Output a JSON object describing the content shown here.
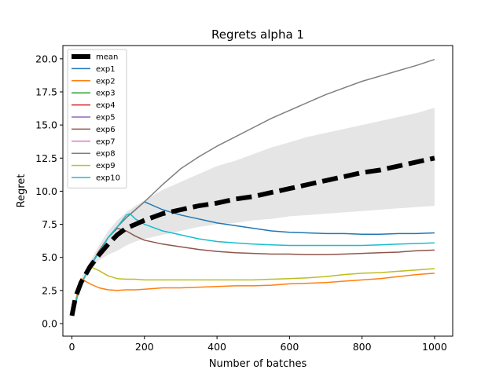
{
  "chart_data": {
    "type": "line",
    "title": "Regrets alpha 1",
    "xlabel": "Number of batches",
    "ylabel": "Regret",
    "xlim": [
      -25,
      1050
    ],
    "ylim": [
      -0.95,
      21.0
    ],
    "xticks": [
      0,
      200,
      400,
      600,
      800,
      1000
    ],
    "xtick_labels": [
      "0",
      "200",
      "400",
      "600",
      "800",
      "1000"
    ],
    "yticks": [
      0.0,
      2.5,
      5.0,
      7.5,
      10.0,
      12.5,
      15.0,
      17.5,
      20.0
    ],
    "ytick_labels": [
      "0.0",
      "2.5",
      "5.0",
      "7.5",
      "10.0",
      "12.5",
      "15.0",
      "17.5",
      "20.0"
    ],
    "grid": false,
    "legend_position": "top-left",
    "mean": {
      "name": "mean",
      "color": "#000000",
      "style": "dashed",
      "x": [
        0,
        10,
        25,
        50,
        75,
        100,
        125,
        150,
        175,
        200,
        250,
        300,
        350,
        400,
        450,
        500,
        550,
        600,
        650,
        700,
        750,
        800,
        850,
        900,
        950,
        1000
      ],
      "y": [
        0.6,
        2.0,
        3.1,
        4.3,
        5.2,
        6.0,
        6.7,
        7.2,
        7.5,
        7.8,
        8.3,
        8.6,
        8.9,
        9.1,
        9.4,
        9.6,
        9.9,
        10.2,
        10.5,
        10.8,
        11.1,
        11.4,
        11.6,
        11.9,
        12.2,
        12.5
      ]
    },
    "band": {
      "color": "#d3d3d3",
      "x": [
        0,
        25,
        50,
        75,
        100,
        125,
        150,
        175,
        200,
        250,
        300,
        350,
        400,
        450,
        500,
        550,
        600,
        650,
        700,
        750,
        800,
        850,
        900,
        950,
        1000
      ],
      "upper": [
        0.8,
        3.4,
        4.7,
        5.9,
        7.0,
        7.8,
        8.4,
        8.9,
        9.3,
        10.1,
        10.7,
        11.3,
        11.9,
        12.3,
        12.8,
        13.3,
        13.7,
        14.1,
        14.4,
        14.7,
        15.0,
        15.3,
        15.6,
        15.9,
        16.3
      ],
      "lower": [
        0.5,
        2.8,
        4.0,
        4.8,
        5.2,
        5.5,
        5.9,
        6.2,
        6.4,
        6.7,
        7.0,
        7.3,
        7.5,
        7.6,
        7.8,
        7.9,
        8.1,
        8.2,
        8.3,
        8.4,
        8.5,
        8.6,
        8.7,
        8.8,
        8.9
      ]
    },
    "series": [
      {
        "name": "exp1",
        "color": "#1f77b4",
        "x": [
          0,
          25,
          50,
          75,
          100,
          125,
          150,
          175,
          200,
          250,
          300,
          350,
          400,
          450,
          500,
          550,
          600,
          650,
          700,
          750,
          800,
          850,
          900,
          950,
          1000
        ],
        "y": [
          0.6,
          3.0,
          4.3,
          5.4,
          6.5,
          7.3,
          8.0,
          8.6,
          9.2,
          8.6,
          8.2,
          7.9,
          7.6,
          7.4,
          7.2,
          7.0,
          6.9,
          6.85,
          6.8,
          6.8,
          6.75,
          6.75,
          6.8,
          6.8,
          6.85
        ]
      },
      {
        "name": "exp2",
        "color": "#ff7f0e",
        "x": [
          0,
          25,
          50,
          75,
          100,
          125,
          150,
          175,
          200,
          250,
          300,
          350,
          400,
          450,
          500,
          550,
          600,
          650,
          700,
          750,
          800,
          850,
          900,
          950,
          1000
        ],
        "y": [
          0.6,
          3.4,
          3.0,
          2.7,
          2.55,
          2.5,
          2.55,
          2.55,
          2.6,
          2.7,
          2.7,
          2.75,
          2.8,
          2.85,
          2.85,
          2.9,
          3.0,
          3.05,
          3.1,
          3.2,
          3.3,
          3.4,
          3.55,
          3.7,
          3.8
        ]
      },
      {
        "name": "exp3",
        "color": "#2ca02c",
        "x": [],
        "y": []
      },
      {
        "name": "exp4",
        "color": "#d62728",
        "x": [],
        "y": []
      },
      {
        "name": "exp5",
        "color": "#9467bd",
        "x": [],
        "y": []
      },
      {
        "name": "exp6",
        "color": "#8c564b",
        "x": [
          0,
          25,
          50,
          75,
          100,
          125,
          150,
          175,
          200,
          250,
          300,
          350,
          400,
          450,
          500,
          550,
          600,
          650,
          700,
          750,
          800,
          850,
          900,
          950,
          1000
        ],
        "y": [
          0.6,
          3.0,
          4.3,
          5.5,
          6.5,
          7.2,
          7.0,
          6.6,
          6.3,
          6.0,
          5.8,
          5.6,
          5.45,
          5.35,
          5.3,
          5.25,
          5.25,
          5.2,
          5.2,
          5.25,
          5.3,
          5.35,
          5.4,
          5.5,
          5.55
        ]
      },
      {
        "name": "exp7",
        "color": "#e377c2",
        "x": [],
        "y": []
      },
      {
        "name": "exp8",
        "color": "#7f7f7f",
        "x": [
          0,
          25,
          50,
          75,
          100,
          125,
          150,
          175,
          200,
          250,
          300,
          350,
          400,
          450,
          500,
          550,
          600,
          650,
          700,
          750,
          800,
          850,
          900,
          950,
          1000
        ],
        "y": [
          0.6,
          3.0,
          4.3,
          5.4,
          6.5,
          7.3,
          8.0,
          8.6,
          9.2,
          10.5,
          11.7,
          12.6,
          13.4,
          14.1,
          14.8,
          15.5,
          16.1,
          16.7,
          17.3,
          17.8,
          18.3,
          18.7,
          19.1,
          19.5,
          19.95
        ]
      },
      {
        "name": "exp9",
        "color": "#bcbd22",
        "x": [
          0,
          25,
          50,
          75,
          100,
          125,
          150,
          175,
          200,
          250,
          300,
          350,
          400,
          450,
          500,
          550,
          600,
          650,
          700,
          750,
          800,
          850,
          900,
          950,
          1000
        ],
        "y": [
          0.6,
          3.0,
          4.3,
          4.0,
          3.6,
          3.4,
          3.35,
          3.35,
          3.3,
          3.3,
          3.3,
          3.3,
          3.3,
          3.3,
          3.3,
          3.35,
          3.4,
          3.45,
          3.55,
          3.7,
          3.8,
          3.85,
          3.95,
          4.05,
          4.15
        ]
      },
      {
        "name": "exp10",
        "color": "#17becf",
        "x": [
          0,
          25,
          50,
          75,
          100,
          125,
          150,
          160,
          175,
          200,
          250,
          300,
          350,
          400,
          450,
          500,
          550,
          600,
          650,
          700,
          750,
          800,
          850,
          900,
          950,
          1000
        ],
        "y": [
          0.6,
          3.0,
          4.3,
          5.4,
          6.5,
          7.3,
          8.2,
          8.3,
          7.9,
          7.5,
          7.0,
          6.7,
          6.4,
          6.2,
          6.1,
          6.0,
          5.95,
          5.9,
          5.9,
          5.9,
          5.9,
          5.9,
          5.95,
          6.0,
          6.05,
          6.1
        ]
      }
    ]
  }
}
